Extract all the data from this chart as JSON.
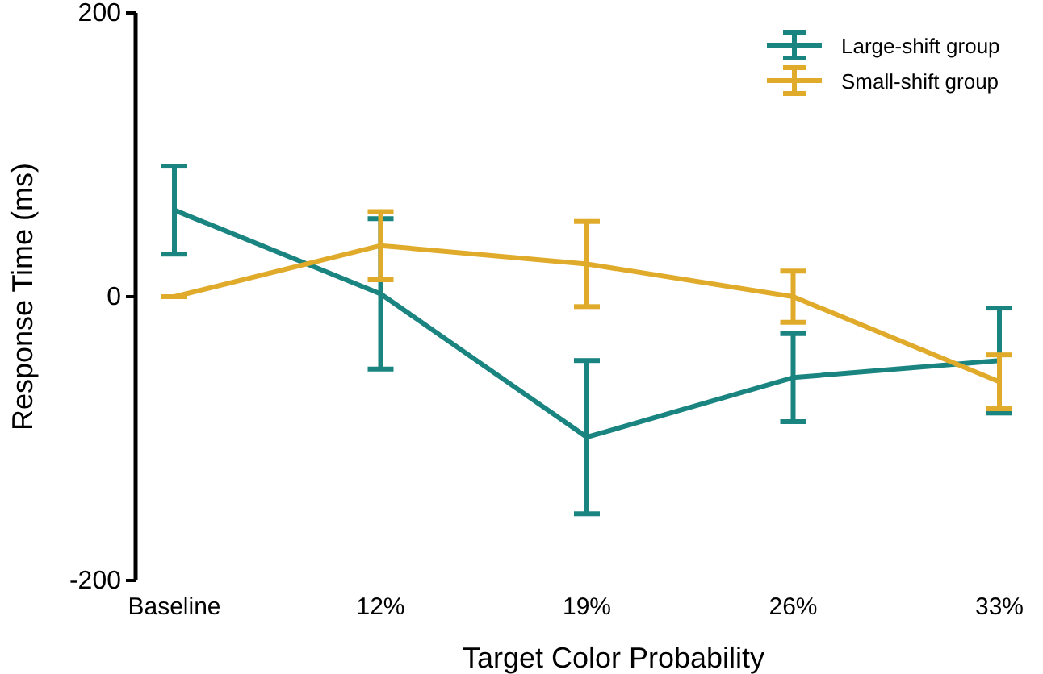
{
  "chart_data": {
    "type": "line",
    "xlabel": "Target Color Probability",
    "ylabel": "Response Time (ms)",
    "categories": [
      "Baseline",
      "12%",
      "19%",
      "26%",
      "33%"
    ],
    "ylim": [
      -200,
      200
    ],
    "yticks": [
      -200,
      0,
      200
    ],
    "legend": "top right",
    "marker": "none",
    "line_style": "solid",
    "series": [
      {
        "name": "Large-shift group",
        "color": "#1a8580",
        "values": [
          61,
          2,
          -99,
          -57,
          -45
        ],
        "errors": [
          31,
          53,
          54,
          31,
          37
        ]
      },
      {
        "name": "Small-shift group",
        "color": "#e0ab2b",
        "values": [
          0,
          36,
          23,
          0,
          -60
        ],
        "errors": [
          0,
          24,
          30,
          18,
          19
        ]
      }
    ]
  }
}
